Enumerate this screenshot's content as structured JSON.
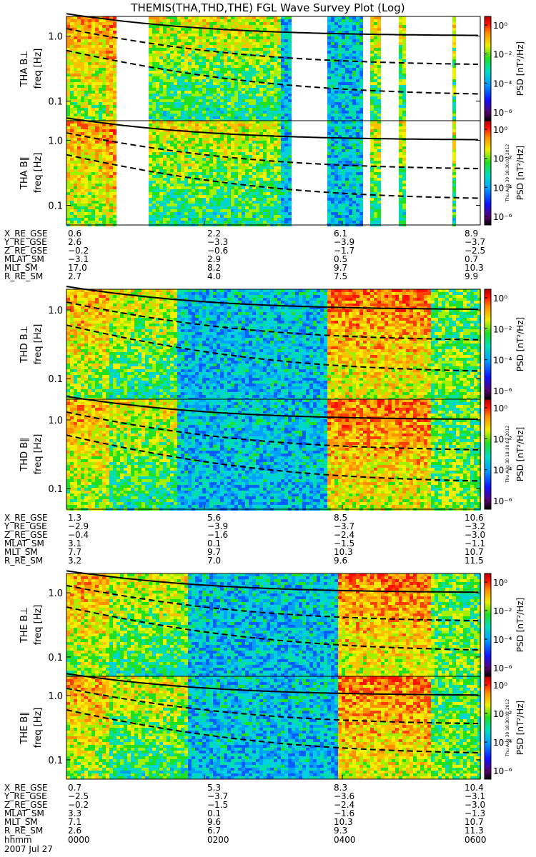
{
  "title": "THEMIS(THA,THD,THE) FGL Wave Survey Plot (Log)",
  "timestamp": "Thu Aug 30 18:30:02 2012",
  "colorbar": {
    "label": "PSD [nT²/Hz]",
    "ticks": [
      "10⁰",
      "10⁻²",
      "10⁻⁴",
      "10⁻⁶"
    ],
    "tick_values": [
      1,
      0.01,
      0.0001,
      1e-06
    ]
  },
  "freq_axis": {
    "label": "freq [Hz]",
    "scale": "log",
    "ticks": [
      "1.0",
      "0.1"
    ],
    "tick_values": [
      1.0,
      0.1
    ],
    "range": [
      0.05,
      2.0
    ]
  },
  "time_axis": {
    "label": "hhmm",
    "ticks": [
      "0000",
      "0200",
      "0400",
      "0600"
    ],
    "date": "2007 Jul 27"
  },
  "chart_data": [
    {
      "type": "heatmap",
      "probe": "THA",
      "panels": [
        {
          "ylabel": "THA B⊥"
        },
        {
          "ylabel": "THA B∥"
        }
      ],
      "ephemeris": {
        "labels": [
          "X_RE_GSE",
          "Y_RE_GSE",
          "Z_RE_GSE",
          "MLAT_SM",
          "MLT_SM",
          "R_RE_SM"
        ],
        "columns": [
          [
            "0.6",
            "2.6",
            "−0.2",
            "−3.1",
            "17.0",
            "2.7"
          ],
          [
            "2.2",
            "−3.3",
            "−0.6",
            "2.9",
            "8.2",
            "4.0"
          ],
          [
            "6.1",
            "−3.9",
            "−1.7",
            "0.5",
            "9.7",
            "7.5"
          ],
          [
            "8.9",
            "−3.7",
            "−2.5",
            "0.7",
            "10.3",
            "9.9"
          ]
        ]
      }
    },
    {
      "type": "heatmap",
      "probe": "THD",
      "panels": [
        {
          "ylabel": "THD B⊥"
        },
        {
          "ylabel": "THD B∥"
        }
      ],
      "ephemeris": {
        "labels": [
          "X_RE_GSE",
          "Y_RE_GSE",
          "Z_RE_GSE",
          "MLAT_SM",
          "MLT_SM",
          "R_RE_SM"
        ],
        "columns": [
          [
            "1.3",
            "−2.9",
            "−0.4",
            "3.1",
            "7.7",
            "3.2"
          ],
          [
            "5.6",
            "−3.9",
            "−1.6",
            "0.1",
            "9.7",
            "7.0"
          ],
          [
            "8.5",
            "−3.7",
            "−2.4",
            "−1.5",
            "10.3",
            "9.6"
          ],
          [
            "10.6",
            "−3.2",
            "−3.0",
            "−1.1",
            "10.7",
            "11.5"
          ]
        ]
      }
    },
    {
      "type": "heatmap",
      "probe": "THE",
      "panels": [
        {
          "ylabel": "THE B⊥"
        },
        {
          "ylabel": "THE B∥"
        }
      ],
      "ephemeris": {
        "labels": [
          "X_RE_GSE",
          "Y_RE_GSE",
          "Z_RE_GSE",
          "MLAT_SM",
          "MLT_SM",
          "R_RE_SM"
        ],
        "columns": [
          [
            "0.7",
            "−2.5",
            "−0.2",
            "3.3",
            "7.1",
            "2.6"
          ],
          [
            "5.3",
            "−3.7",
            "−1.5",
            "0.1",
            "9.6",
            "6.7"
          ],
          [
            "8.3",
            "−3.6",
            "−2.4",
            "−1.6",
            "10.3",
            "9.3"
          ],
          [
            "10.4",
            "−3.1",
            "−3.0",
            "−1.3",
            "10.7",
            "11.3"
          ]
        ]
      }
    }
  ]
}
